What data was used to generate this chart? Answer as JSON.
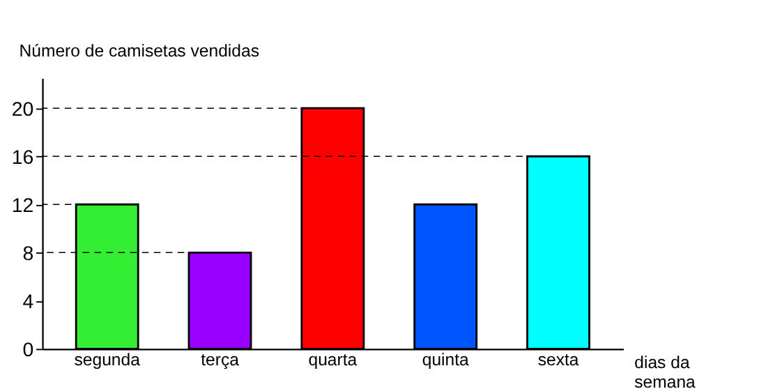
{
  "chart_data": {
    "type": "bar",
    "ylabel": "Número de camisetas vendidas",
    "xlabel": "dias da semana",
    "categories": [
      "segunda",
      "terça",
      "quarta",
      "quinta",
      "sexta"
    ],
    "values": [
      12,
      8,
      20,
      12,
      16
    ],
    "colors": [
      "#33ee33",
      "#9900ff",
      "#ff0000",
      "#0055ff",
      "#00ffff"
    ],
    "ylim": [
      0,
      22.5
    ],
    "yticks": [
      0,
      4,
      8,
      12,
      16,
      20
    ],
    "grid": false,
    "ref_lines": [
      {
        "axis": "y",
        "value": 8,
        "line_style": "dashed"
      },
      {
        "axis": "y",
        "value": 12,
        "line_style": "dashed"
      },
      {
        "axis": "y",
        "value": 16,
        "line_style": "dashed"
      },
      {
        "axis": "y",
        "value": 20,
        "line_style": "dashed"
      }
    ]
  }
}
